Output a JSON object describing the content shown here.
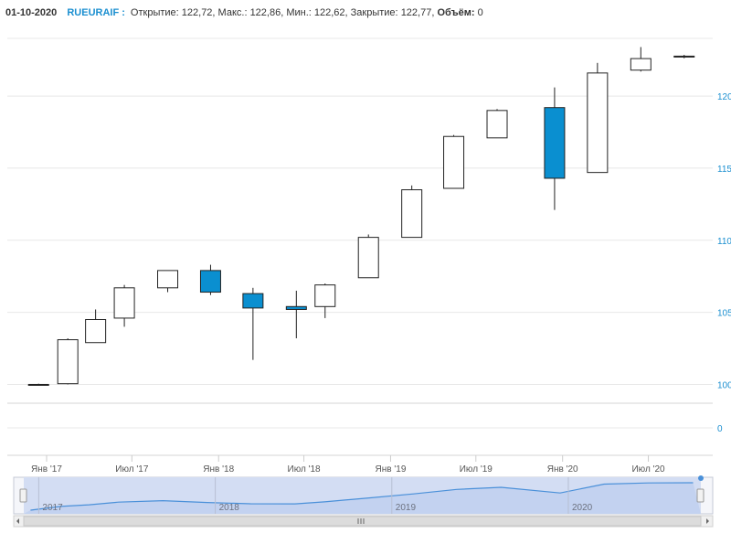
{
  "header": {
    "date": "01-10-2020",
    "ticker": "RUEURAIF",
    "separator": ":",
    "open_label": "Открытие:",
    "open_value": "122,72,",
    "high_label": "Макс.:",
    "high_value": "122,86,",
    "low_label": "Мин.:",
    "low_value": "122,62,",
    "close_label": "Закрытие:",
    "close_value": "122,77,",
    "volume_label": "Объём:",
    "volume_value": "0"
  },
  "colors": {
    "up_fill": "#ffffff",
    "down_fill": "#0a8fd0",
    "candle_stroke": "#222222",
    "y_axis_text": "#1b8fd0",
    "grid": "#e8e8e8",
    "navigator_fill": "#d3ddf3",
    "navigator_line": "#4a90d9"
  },
  "chart_data": {
    "type": "candlestick",
    "title": "",
    "xlabel": "",
    "ylabel": "",
    "ylim": [
      98,
      124
    ],
    "yticks": [
      100,
      105,
      110,
      115,
      120
    ],
    "volume_ticks": [
      0
    ],
    "x_ticks": [
      "Янв '17",
      "Июл '17",
      "Янв '18",
      "Июл '18",
      "Янв '19",
      "Июл '19",
      "Янв '20",
      "Июл '20"
    ],
    "grid": true,
    "candles": [
      {
        "date": "2016-12",
        "open": 100.0,
        "high": 100.05,
        "low": 99.95,
        "close": 100.0
      },
      {
        "date": "2017-02",
        "open": 100.05,
        "high": 103.2,
        "low": 100.0,
        "close": 103.1
      },
      {
        "date": "2017-04",
        "open": 102.9,
        "high": 105.2,
        "low": 102.9,
        "close": 104.5
      },
      {
        "date": "2017-06",
        "open": 104.6,
        "high": 106.9,
        "low": 104.0,
        "close": 106.7
      },
      {
        "date": "2017-09",
        "open": 106.7,
        "high": 107.9,
        "low": 106.4,
        "close": 107.9
      },
      {
        "date": "2017-12",
        "open": 107.9,
        "high": 108.3,
        "low": 106.2,
        "close": 106.4
      },
      {
        "date": "2018-03",
        "open": 106.3,
        "high": 106.7,
        "low": 101.7,
        "close": 105.3
      },
      {
        "date": "2018-06",
        "open": 105.4,
        "high": 106.5,
        "low": 103.2,
        "close": 105.2
      },
      {
        "date": "2018-08",
        "open": 105.4,
        "high": 107.0,
        "low": 104.6,
        "close": 106.9
      },
      {
        "date": "2018-11",
        "open": 107.4,
        "high": 110.4,
        "low": 107.4,
        "close": 110.2
      },
      {
        "date": "2019-02",
        "open": 110.2,
        "high": 113.8,
        "low": 110.2,
        "close": 113.5
      },
      {
        "date": "2019-05",
        "open": 113.6,
        "high": 117.3,
        "low": 113.6,
        "close": 117.2
      },
      {
        "date": "2019-08",
        "open": 117.1,
        "high": 119.1,
        "low": 117.1,
        "close": 119.0
      },
      {
        "date": "2019-12",
        "open": 119.2,
        "high": 120.6,
        "low": 112.1,
        "close": 114.3
      },
      {
        "date": "2020-03",
        "open": 114.7,
        "high": 122.3,
        "low": 114.7,
        "close": 121.6
      },
      {
        "date": "2020-06",
        "open": 121.8,
        "high": 123.4,
        "low": 121.7,
        "close": 122.6
      },
      {
        "date": "2020-09",
        "open": 122.72,
        "high": 122.86,
        "low": 122.62,
        "close": 122.77
      }
    ],
    "navigator": {
      "labels": [
        "2017",
        "2018",
        "2019",
        "2020"
      ]
    }
  }
}
